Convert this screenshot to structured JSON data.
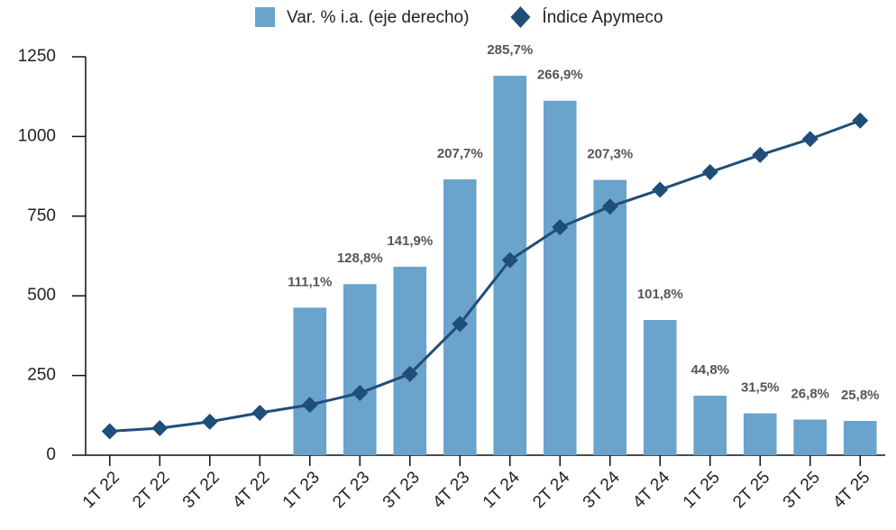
{
  "chart_data": {
    "type": "bar-line",
    "categories": [
      "1T 22",
      "2T 22",
      "3T 22",
      "4T 22",
      "1T 23",
      "2T 23",
      "3T 23",
      "4T 23",
      "1T 24",
      "2T 24",
      "3T 24",
      "4T 24",
      "1T 25",
      "2T 25",
      "3T 25",
      "4T 25"
    ],
    "series": [
      {
        "name": "Var. % i.a. (eje derecho)",
        "color": "#6aa3cb",
        "axis": "y2",
        "kind": "bar",
        "values": [
          null,
          null,
          null,
          null,
          111.1,
          128.8,
          141.9,
          207.7,
          285.7,
          266.9,
          207.3,
          101.8,
          44.8,
          31.5,
          26.8,
          25.8
        ],
        "value_labels": [
          null,
          null,
          null,
          null,
          "111,1%",
          "128,8%",
          "141,9%",
          "207,7%",
          "285,7%",
          "266,9%",
          "207,3%",
          "101,8%",
          "44,8%",
          "31,5%",
          "26,8%",
          "25,8%"
        ]
      },
      {
        "name": "Índice Apymeco",
        "color": "#1f4e79",
        "kind": "line",
        "values": [
          75,
          85,
          105,
          133,
          158,
          195,
          255,
          412,
          612,
          715,
          780,
          833,
          888,
          942,
          992,
          1050
        ]
      }
    ],
    "ylim": [
      0,
      1250
    ],
    "yticks": [
      0,
      250,
      500,
      750,
      1000,
      1250
    ],
    "y2lim": [
      0,
      300
    ]
  }
}
